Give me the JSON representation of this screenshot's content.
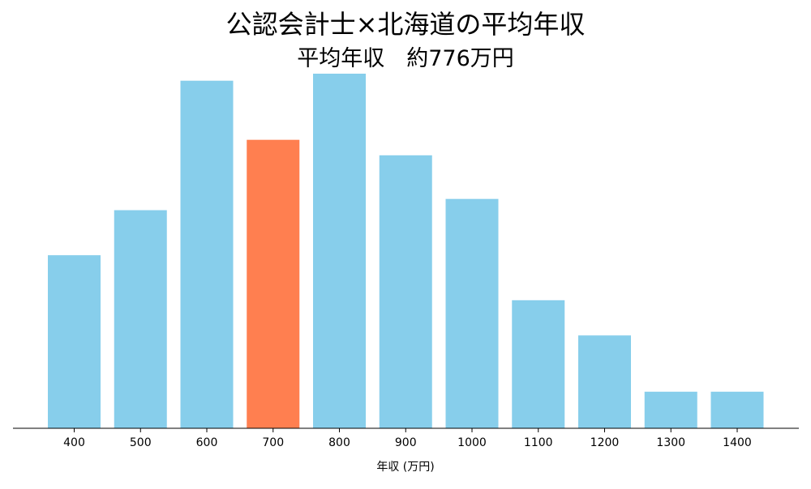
{
  "chart_data": {
    "type": "bar",
    "title": "公認会計士×北海道の平均年収",
    "subtitle": "平均年収　約776万円",
    "xlabel": "年収 (万円)",
    "ylabel": "",
    "categories": [
      "400",
      "500",
      "600",
      "700",
      "800",
      "900",
      "1000",
      "1100",
      "1200",
      "1300",
      "1400"
    ],
    "values": [
      12.3,
      15.5,
      24.7,
      20.5,
      25.2,
      19.4,
      16.3,
      9.1,
      6.6,
      2.6,
      2.6
    ],
    "ylim": [
      0,
      25.2
    ],
    "highlight_category": "700",
    "bar_color": "#87CEEB",
    "highlight_color": "#FF7F50",
    "grid": false,
    "y_axis_visible": false
  }
}
